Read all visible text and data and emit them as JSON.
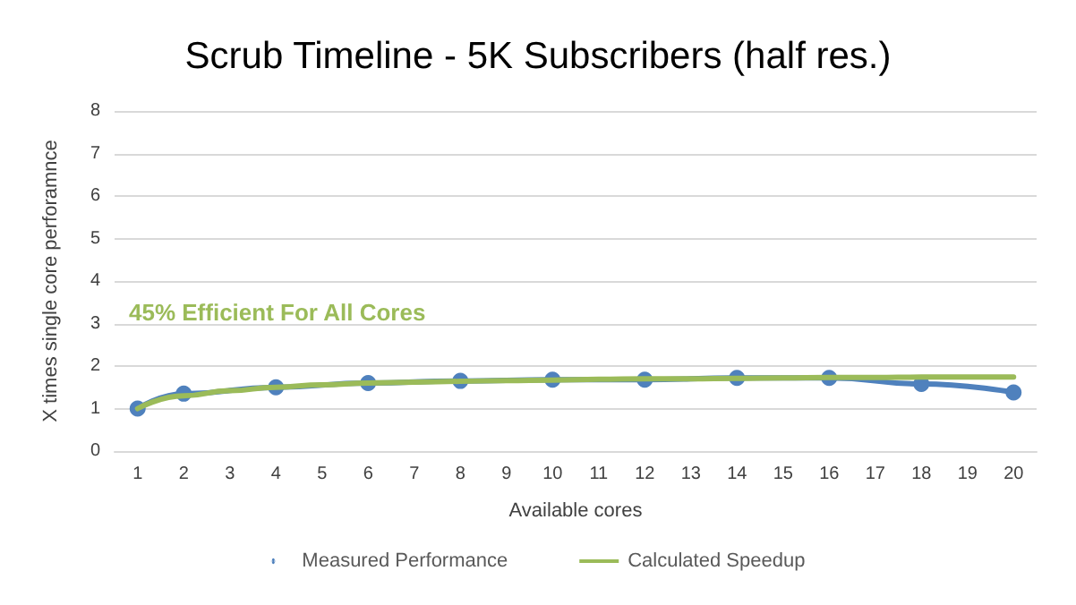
{
  "chart_data": {
    "type": "line",
    "title": "Scrub Timeline - 5K Subscribers (half res.)",
    "xlabel": "Available cores",
    "ylabel": "X times single core perforamnce",
    "categories": [
      "1",
      "2",
      "3",
      "4",
      "5",
      "6",
      "7",
      "8",
      "9",
      "10",
      "11",
      "12",
      "13",
      "14",
      "15",
      "16",
      "17",
      "18",
      "19",
      "20"
    ],
    "series": [
      {
        "name": "Measured Performance",
        "color": "#4f81bd",
        "marker": "circle",
        "values": [
          1.0,
          1.35,
          null,
          1.5,
          null,
          1.6,
          null,
          1.65,
          null,
          1.68,
          null,
          1.68,
          null,
          1.72,
          null,
          1.72,
          null,
          1.58,
          null,
          1.38
        ]
      },
      {
        "name": "Calculated Speedup",
        "color": "#9bbb59",
        "marker": "none",
        "values": [
          1.0,
          1.3,
          1.42,
          1.5,
          1.56,
          1.6,
          1.62,
          1.64,
          1.66,
          1.67,
          1.69,
          1.7,
          1.7,
          1.71,
          1.72,
          1.73,
          1.73,
          1.74,
          1.74,
          1.74
        ]
      }
    ],
    "ylim": [
      0,
      8
    ],
    "yticks": [
      0,
      1,
      2,
      3,
      4,
      5,
      6,
      7,
      8
    ],
    "grid": "y",
    "legend": "bottom",
    "annotations": [
      "45% Efficient For All Cores"
    ]
  }
}
